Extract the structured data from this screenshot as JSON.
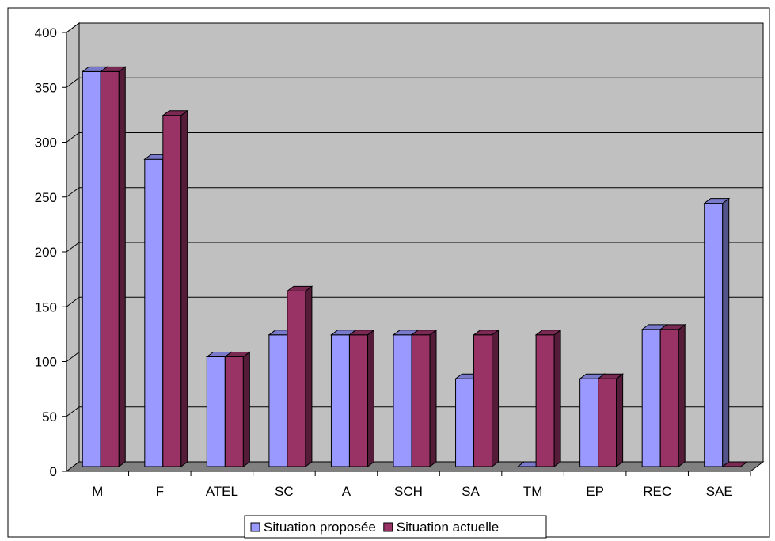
{
  "chart_data": {
    "type": "bar",
    "categories": [
      "M",
      "F",
      "ATEL",
      "SC",
      "A",
      "SCH",
      "SA",
      "TM",
      "EP",
      "REC",
      "SAE"
    ],
    "series": [
      {
        "name": "Situation proposée",
        "values": [
          360,
          280,
          100,
          120,
          120,
          120,
          80,
          0,
          80,
          125,
          240
        ],
        "color": "#9999ff"
      },
      {
        "name": "Situation actuelle",
        "values": [
          360,
          320,
          100,
          160,
          120,
          120,
          120,
          120,
          80,
          125,
          0
        ],
        "color": "#993366"
      }
    ],
    "title": "",
    "xlabel": "",
    "ylabel": "",
    "ylim": [
      0,
      400
    ],
    "yticks": [
      0,
      50,
      100,
      150,
      200,
      250,
      300,
      350,
      400
    ],
    "grid": true,
    "legend_position": "bottom",
    "style": "3d-clustered-column",
    "wall_color": "#c0c0c0",
    "floor_color": "#808080"
  }
}
